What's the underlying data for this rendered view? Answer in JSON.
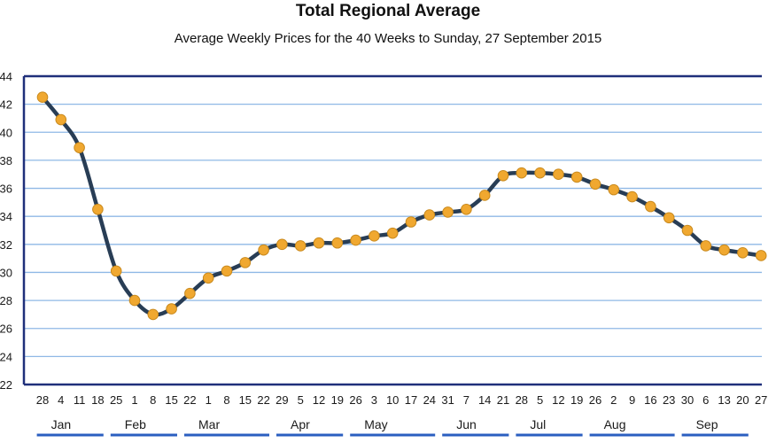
{
  "chart_data": {
    "type": "line",
    "title": "Total Regional Average",
    "subtitle": "Average Weekly Prices for the 40 Weeks to Sunday, 27 September 2015",
    "xlabel": "",
    "ylabel": "",
    "y_tick_labels": [
      "22",
      "24",
      "26",
      "28",
      "30",
      "32",
      "34",
      "36",
      "38",
      "40",
      "42",
      "44"
    ],
    "ylim": [
      22,
      44
    ],
    "grid": true,
    "x": [
      "28",
      "4",
      "11",
      "18",
      "25",
      "1",
      "8",
      "15",
      "22",
      "1",
      "8",
      "15",
      "22",
      "29",
      "5",
      "12",
      "19",
      "26",
      "3",
      "10",
      "17",
      "24",
      "31",
      "7",
      "14",
      "21",
      "28",
      "5",
      "12",
      "19",
      "26",
      "2",
      "9",
      "16",
      "23",
      "30",
      "6",
      "13",
      "20",
      "27"
    ],
    "months": [
      {
        "label": "Jan",
        "start": 1,
        "end": 5
      },
      {
        "label": "Feb",
        "start": 5,
        "end": 9
      },
      {
        "label": "Mar",
        "start": 9,
        "end": 14
      },
      {
        "label": "Apr",
        "start": 14,
        "end": 18
      },
      {
        "label": "May",
        "start": 18,
        "end": 23
      },
      {
        "label": "Jun",
        "start": 23,
        "end": 27
      },
      {
        "label": "Jul",
        "start": 27,
        "end": 31
      },
      {
        "label": "Aug",
        "start": 31,
        "end": 36
      },
      {
        "label": "Sep",
        "start": 36,
        "end": 40
      }
    ],
    "series": [
      {
        "values": [
          42.5,
          40.9,
          38.9,
          34.5,
          30.1,
          28.0,
          27.0,
          27.4,
          28.5,
          29.6,
          30.1,
          30.7,
          31.6,
          32.0,
          31.9,
          32.1,
          32.1,
          32.3,
          32.6,
          32.8,
          33.6,
          34.1,
          34.3,
          34.5,
          35.5,
          36.9,
          37.1,
          37.1,
          37.0,
          36.8,
          36.3,
          35.9,
          35.4,
          34.7,
          33.9,
          33.0,
          31.9,
          31.6,
          31.4,
          31.2
        ]
      }
    ],
    "colors": {
      "line": "#283d55",
      "marker": "#f0a830",
      "grid": "#8fb8e6",
      "axis": "#1f2f7a"
    }
  }
}
